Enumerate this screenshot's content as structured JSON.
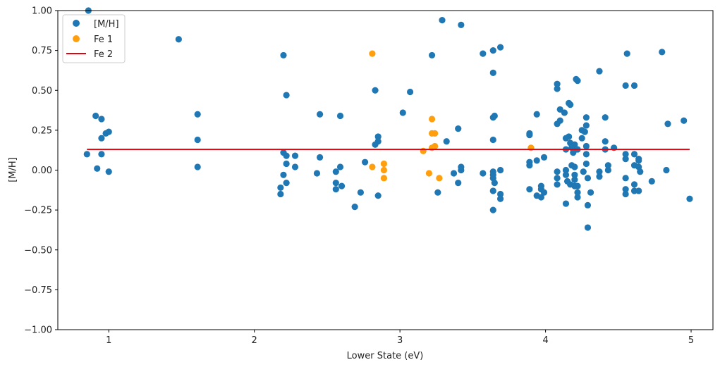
{
  "chart_data": {
    "type": "scatter",
    "title": "",
    "xlabel": "Lower State (eV)",
    "ylabel": "[M/H]",
    "xlim": [
      0.65,
      5.15
    ],
    "ylim": [
      -1.0,
      1.0
    ],
    "xticks": [
      1,
      2,
      3,
      4,
      5
    ],
    "xtick_labels": [
      "1",
      "2",
      "3",
      "4",
      "5"
    ],
    "yticks": [
      -1.0,
      -0.75,
      -0.5,
      -0.25,
      0.0,
      0.25,
      0.5,
      0.75,
      1.0
    ],
    "ytick_labels": [
      "−1.00",
      "−0.75",
      "−0.50",
      "−0.25",
      "0.00",
      "0.25",
      "0.50",
      "0.75",
      "1.00"
    ],
    "grid": false,
    "legend_position": "top-left",
    "series": [
      {
        "name": "[M/H]",
        "kind": "scatter",
        "color": "#1f77b4",
        "points": [
          [
            0.86,
            1.0
          ],
          [
            0.85,
            0.1
          ],
          [
            0.91,
            0.34
          ],
          [
            0.95,
            0.32
          ],
          [
            0.92,
            0.01
          ],
          [
            0.95,
            0.1
          ],
          [
            0.95,
            0.2
          ],
          [
            0.98,
            0.23
          ],
          [
            1.0,
            0.24
          ],
          [
            1.0,
            -0.01
          ],
          [
            1.48,
            0.82
          ],
          [
            1.61,
            0.35
          ],
          [
            1.61,
            0.19
          ],
          [
            1.61,
            0.02
          ],
          [
            2.2,
            0.72
          ],
          [
            2.22,
            0.47
          ],
          [
            2.2,
            0.11
          ],
          [
            2.22,
            0.09
          ],
          [
            2.22,
            0.04
          ],
          [
            2.2,
            -0.03
          ],
          [
            2.22,
            -0.08
          ],
          [
            2.18,
            -0.11
          ],
          [
            2.18,
            -0.15
          ],
          [
            2.28,
            0.09
          ],
          [
            2.28,
            0.02
          ],
          [
            2.45,
            0.35
          ],
          [
            2.45,
            0.08
          ],
          [
            2.43,
            -0.02
          ],
          [
            2.59,
            0.34
          ],
          [
            2.59,
            0.02
          ],
          [
            2.56,
            -0.01
          ],
          [
            2.56,
            -0.08
          ],
          [
            2.56,
            -0.12
          ],
          [
            2.6,
            -0.1
          ],
          [
            2.69,
            -0.23
          ],
          [
            2.73,
            -0.14
          ],
          [
            2.76,
            0.05
          ],
          [
            2.83,
            0.5
          ],
          [
            2.85,
            0.21
          ],
          [
            2.85,
            0.18
          ],
          [
            2.83,
            0.16
          ],
          [
            2.85,
            -0.16
          ],
          [
            3.02,
            0.36
          ],
          [
            3.07,
            0.49
          ],
          [
            3.22,
            0.72
          ],
          [
            3.29,
            0.94
          ],
          [
            3.42,
            0.91
          ],
          [
            3.32,
            0.18
          ],
          [
            3.4,
            0.26
          ],
          [
            3.37,
            -0.02
          ],
          [
            3.42,
            0.0
          ],
          [
            3.42,
            0.02
          ],
          [
            3.4,
            -0.08
          ],
          [
            3.26,
            -0.14
          ],
          [
            3.57,
            0.73
          ],
          [
            3.64,
            0.75
          ],
          [
            3.69,
            0.77
          ],
          [
            3.64,
            0.61
          ],
          [
            3.64,
            0.33
          ],
          [
            3.65,
            0.34
          ],
          [
            3.64,
            0.19
          ],
          [
            3.57,
            -0.02
          ],
          [
            3.64,
            -0.01
          ],
          [
            3.64,
            -0.03
          ],
          [
            3.64,
            -0.05
          ],
          [
            3.65,
            -0.08
          ],
          [
            3.69,
            0.0
          ],
          [
            3.64,
            -0.13
          ],
          [
            3.69,
            -0.15
          ],
          [
            3.69,
            -0.18
          ],
          [
            3.64,
            -0.25
          ],
          [
            3.89,
            0.23
          ],
          [
            3.89,
            0.22
          ],
          [
            3.89,
            0.05
          ],
          [
            3.89,
            0.03
          ],
          [
            3.89,
            -0.12
          ],
          [
            3.94,
            0.35
          ],
          [
            3.94,
            0.06
          ],
          [
            3.94,
            -0.16
          ],
          [
            3.97,
            -0.1
          ],
          [
            3.97,
            -0.12
          ],
          [
            3.97,
            -0.17
          ],
          [
            3.99,
            0.08
          ],
          [
            3.99,
            -0.14
          ],
          [
            4.08,
            0.54
          ],
          [
            4.08,
            0.51
          ],
          [
            4.08,
            0.29
          ],
          [
            4.1,
            0.31
          ],
          [
            4.1,
            0.38
          ],
          [
            4.08,
            -0.01
          ],
          [
            4.08,
            -0.05
          ],
          [
            4.08,
            -0.09
          ],
          [
            4.13,
            0.36
          ],
          [
            4.14,
            0.13
          ],
          [
            4.14,
            0.0
          ],
          [
            4.14,
            -0.03
          ],
          [
            4.15,
            -0.07
          ],
          [
            4.14,
            -0.21
          ],
          [
            4.16,
            0.42
          ],
          [
            4.17,
            0.41
          ],
          [
            4.16,
            0.21
          ],
          [
            4.14,
            0.2
          ],
          [
            4.17,
            0.17
          ],
          [
            4.2,
            0.16
          ],
          [
            4.18,
            0.14
          ],
          [
            4.19,
            0.11
          ],
          [
            4.2,
            0.02
          ],
          [
            4.18,
            0.03
          ],
          [
            4.2,
            -0.03
          ],
          [
            4.2,
            -0.06
          ],
          [
            4.17,
            -0.09
          ],
          [
            4.2,
            -0.1
          ],
          [
            4.21,
            0.57
          ],
          [
            4.22,
            0.56
          ],
          [
            4.22,
            0.13
          ],
          [
            4.22,
            -0.1
          ],
          [
            4.22,
            -0.14
          ],
          [
            4.22,
            -0.17
          ],
          [
            4.25,
            0.25
          ],
          [
            4.25,
            0.2
          ],
          [
            4.27,
            0.24
          ],
          [
            4.28,
            0.28
          ],
          [
            4.28,
            0.33
          ],
          [
            4.28,
            0.15
          ],
          [
            4.28,
            0.1
          ],
          [
            4.28,
            0.04
          ],
          [
            4.26,
            -0.01
          ],
          [
            4.29,
            -0.05
          ],
          [
            4.29,
            -0.22
          ],
          [
            4.29,
            -0.36
          ],
          [
            4.31,
            -0.14
          ],
          [
            4.37,
            0.62
          ],
          [
            4.37,
            -0.01
          ],
          [
            4.37,
            -0.04
          ],
          [
            4.41,
            0.33
          ],
          [
            4.41,
            0.18
          ],
          [
            4.41,
            0.13
          ],
          [
            4.43,
            0.03
          ],
          [
            4.43,
            0.0
          ],
          [
            4.47,
            0.14
          ],
          [
            4.56,
            0.73
          ],
          [
            4.55,
            0.53
          ],
          [
            4.61,
            0.53
          ],
          [
            4.55,
            0.1
          ],
          [
            4.55,
            0.07
          ],
          [
            4.55,
            -0.05
          ],
          [
            4.55,
            -0.12
          ],
          [
            4.55,
            -0.15
          ],
          [
            4.61,
            0.1
          ],
          [
            4.61,
            0.03
          ],
          [
            4.61,
            -0.09
          ],
          [
            4.61,
            -0.13
          ],
          [
            4.64,
            0.07
          ],
          [
            4.64,
            0.06
          ],
          [
            4.64,
            0.02
          ],
          [
            4.65,
            -0.01
          ],
          [
            4.64,
            -0.13
          ],
          [
            4.73,
            -0.07
          ],
          [
            4.8,
            0.74
          ],
          [
            4.84,
            0.29
          ],
          [
            4.83,
            0.0
          ],
          [
            4.95,
            0.31
          ],
          [
            4.99,
            -0.18
          ]
        ]
      },
      {
        "name": "Fe 1",
        "kind": "scatter",
        "color": "#ff9f0e",
        "points": [
          [
            2.81,
            0.73
          ],
          [
            2.81,
            0.02
          ],
          [
            2.89,
            0.04
          ],
          [
            2.89,
            0.0
          ],
          [
            2.89,
            -0.05
          ],
          [
            3.16,
            0.12
          ],
          [
            3.2,
            -0.02
          ],
          [
            3.22,
            0.32
          ],
          [
            3.22,
            0.23
          ],
          [
            3.24,
            0.23
          ],
          [
            3.22,
            0.14
          ],
          [
            3.24,
            0.15
          ],
          [
            3.27,
            -0.05
          ],
          [
            3.9,
            0.14
          ]
        ]
      },
      {
        "name": "Fe 2",
        "kind": "line",
        "color": "#e8000b",
        "points": [
          [
            0.85,
            0.13
          ],
          [
            4.99,
            0.13
          ]
        ]
      }
    ]
  }
}
